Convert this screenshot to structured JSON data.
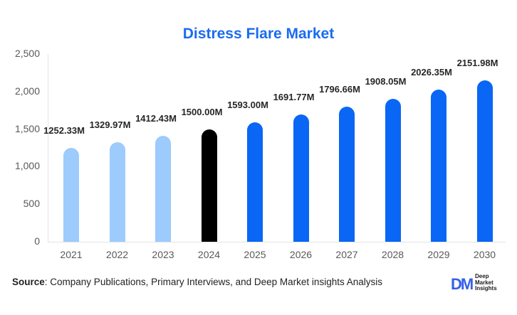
{
  "title": "Distress Flare Market",
  "source_label": "Source",
  "source_text": ": Company Publications, Primary Interviews, and Deep Market insights Analysis",
  "logo": {
    "mark": "DM",
    "line1": "Deep",
    "line2": "Market",
    "line3": "Insights"
  },
  "colors": {
    "historical": "#9ccbfc",
    "base_year": "#000000",
    "forecast": "#0a66f5",
    "title": "#1a6cf0"
  },
  "chart_data": {
    "type": "bar",
    "title": "Distress Flare Market",
    "xlabel": "",
    "ylabel": "",
    "ylim": [
      0,
      2500
    ],
    "yticks": [
      "0",
      "500",
      "1,000",
      "1,500",
      "2,000",
      "2,500"
    ],
    "categories": [
      "2021",
      "2022",
      "2023",
      "2024",
      "2025",
      "2026",
      "2027",
      "2028",
      "2029",
      "2030"
    ],
    "values": [
      1252.33,
      1329.97,
      1412.43,
      1500.0,
      1593.0,
      1691.77,
      1796.66,
      1908.05,
      2026.35,
      2151.98
    ],
    "labels": [
      "1252.33M",
      "1329.97M",
      "1412.43M",
      "1500.00M",
      "1593.00M",
      "1691.77M",
      "1796.66M",
      "1908.05M",
      "2026.35M",
      "2151.98M"
    ],
    "bar_colors": [
      "#9ccbfc",
      "#9ccbfc",
      "#9ccbfc",
      "#000000",
      "#0a66f5",
      "#0a66f5",
      "#0a66f5",
      "#0a66f5",
      "#0a66f5",
      "#0a66f5"
    ],
    "grid": false,
    "legend": null
  }
}
